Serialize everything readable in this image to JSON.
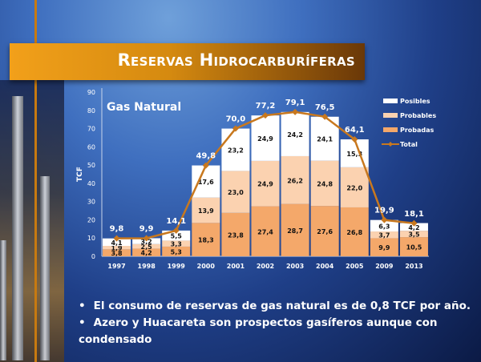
{
  "title": "Reservas Hidrocarburíferas",
  "chart_data": {
    "type": "bar",
    "stacked": true,
    "title": "Gas Natural",
    "ylabel": "TCF",
    "xlabel": "",
    "ylim": [
      0,
      90
    ],
    "yticks": [
      0,
      10,
      20,
      30,
      40,
      50,
      60,
      70,
      80,
      90
    ],
    "categories": [
      "1997",
      "1998",
      "1999",
      "2000",
      "2001",
      "2002",
      "2003",
      "2004",
      "2005",
      "2009",
      "2013"
    ],
    "series": [
      {
        "name": "Probadas",
        "color": "#f4a86a",
        "values": [
          3.8,
          4.2,
          5.3,
          18.3,
          23.8,
          27.4,
          28.7,
          27.6,
          26.8,
          9.9,
          10.5
        ],
        "labels": [
          "3,8",
          "4,2",
          "5,3",
          "18,3",
          "23,8",
          "27,4",
          "28,7",
          "27,6",
          "26,8",
          "9,9",
          "10,5"
        ]
      },
      {
        "name": "Probables",
        "color": "#fbd2b0",
        "values": [
          1.9,
          2.5,
          3.3,
          13.9,
          23.0,
          24.9,
          26.2,
          24.8,
          22.0,
          3.7,
          3.5
        ],
        "labels": [
          "1,9",
          "2,5",
          "3,3",
          "13,9",
          "23,0",
          "24,9",
          "26,2",
          "24,8",
          "22,0",
          "3,7",
          "3,5"
        ]
      },
      {
        "name": "Posibles",
        "color": "#ffffff",
        "values": [
          4.1,
          3.2,
          5.5,
          17.6,
          23.2,
          24.9,
          24.2,
          24.1,
          15.3,
          6.3,
          4.2
        ],
        "labels": [
          "4,1",
          "3,2",
          "5,5",
          "17,6",
          "23,2",
          "24,9",
          "24,2",
          "24,1",
          "15,3",
          "6,3",
          "4,2"
        ]
      }
    ],
    "total": {
      "name": "Total",
      "color": "#c8781e",
      "values": [
        9.8,
        9.9,
        14.1,
        49.8,
        70.0,
        77.2,
        79.1,
        76.5,
        64.1,
        19.9,
        18.1
      ],
      "labels": [
        "9,8",
        "9,9",
        "14,1",
        "49,8",
        "70,0",
        "77,2",
        "79,1",
        "76,5",
        "64,1",
        "19,9",
        "18,1"
      ]
    },
    "legend_position": "top-right",
    "legend_order": [
      "Posibles",
      "Probables",
      "Probadas",
      "Total"
    ]
  },
  "bullets": [
    "El consumo de reservas de gas  natural es de 0,8 TCF  por año.",
    "Azero y Huacareta son prospectos gasíferos aunque con condensado"
  ]
}
